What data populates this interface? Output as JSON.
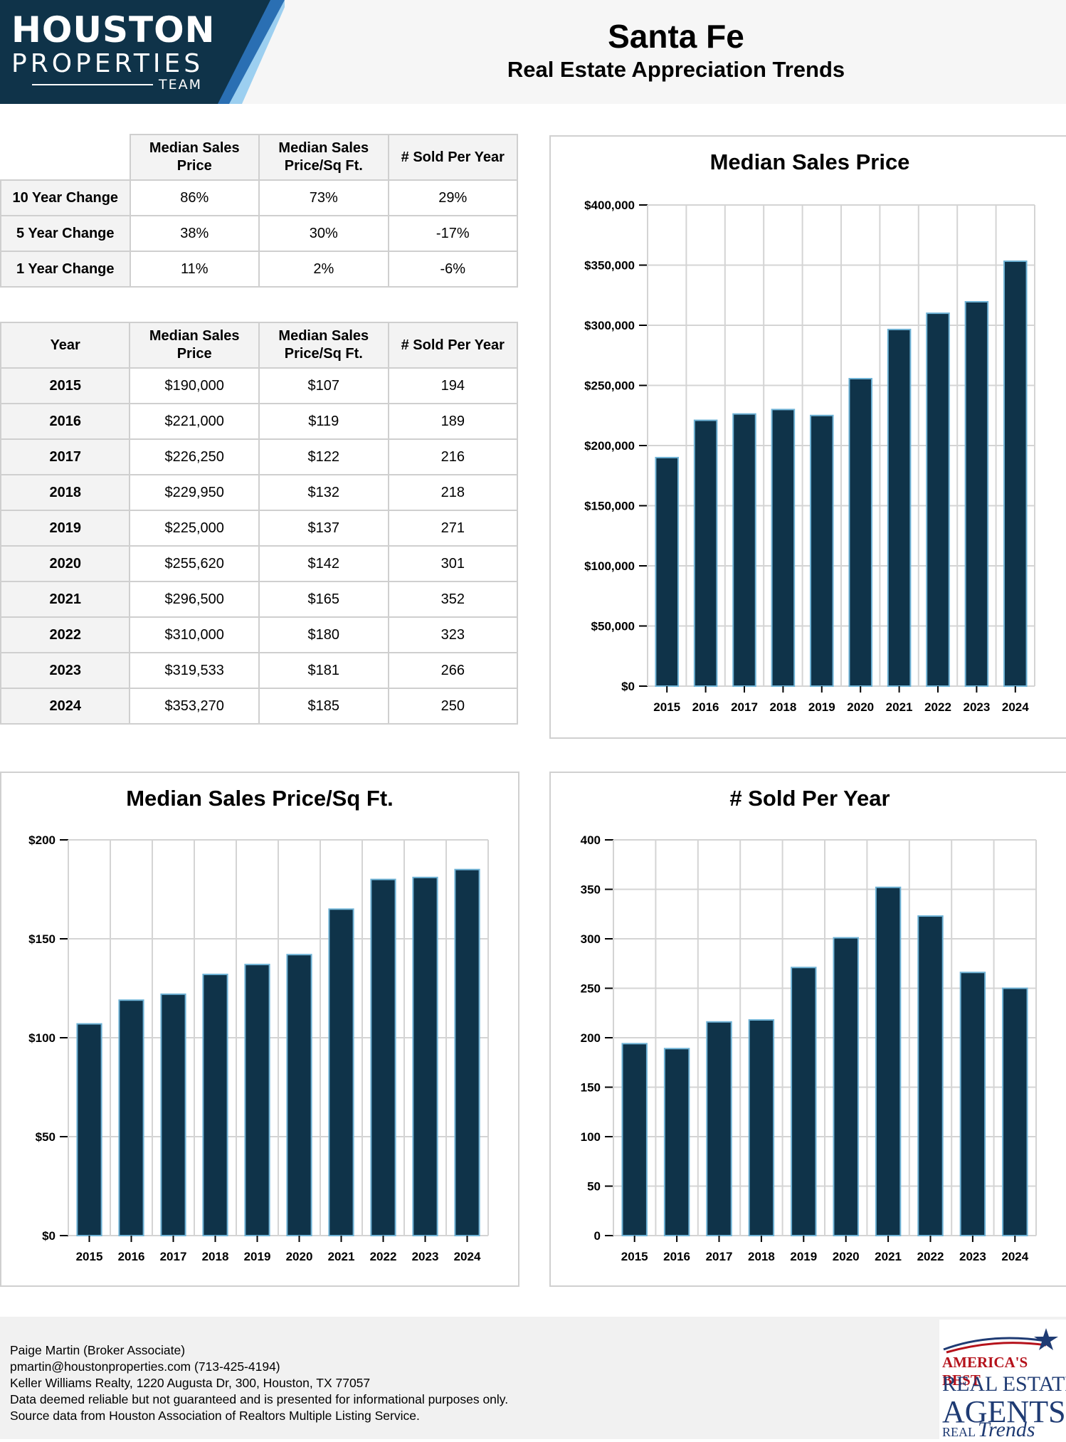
{
  "header": {
    "logo": {
      "line1": "HOUSTON",
      "line2": "PROPERTIES",
      "line3": "TEAM"
    },
    "title": "Santa Fe",
    "subtitle": "Real Estate Appreciation Trends"
  },
  "change_table": {
    "columns": [
      "Median Sales Price",
      "Median Sales Price/Sq Ft.",
      "# Sold Per Year"
    ],
    "rows": [
      {
        "label": "10 Year Change",
        "values": [
          "86%",
          "73%",
          "29%"
        ]
      },
      {
        "label": "5 Year Change",
        "values": [
          "38%",
          "30%",
          "-17%"
        ]
      },
      {
        "label": "1 Year Change",
        "values": [
          "11%",
          "2%",
          "-6%"
        ]
      }
    ]
  },
  "year_table": {
    "columns": [
      "Year",
      "Median Sales Price",
      "Median Sales Price/Sq Ft.",
      "# Sold Per Year"
    ],
    "rows": [
      [
        "2015",
        "$190,000",
        "$107",
        "194"
      ],
      [
        "2016",
        "$221,000",
        "$119",
        "189"
      ],
      [
        "2017",
        "$226,250",
        "$122",
        "216"
      ],
      [
        "2018",
        "$229,950",
        "$132",
        "218"
      ],
      [
        "2019",
        "$225,000",
        "$137",
        "271"
      ],
      [
        "2020",
        "$255,620",
        "$142",
        "301"
      ],
      [
        "2021",
        "$296,500",
        "$165",
        "352"
      ],
      [
        "2022",
        "$310,000",
        "$180",
        "323"
      ],
      [
        "2023",
        "$319,533",
        "$181",
        "266"
      ],
      [
        "2024",
        "$353,270",
        "$185",
        "250"
      ]
    ]
  },
  "chart_data": [
    {
      "id": "price",
      "type": "bar",
      "title": "Median Sales Price",
      "categories": [
        "2015",
        "2016",
        "2017",
        "2018",
        "2019",
        "2020",
        "2021",
        "2022",
        "2023",
        "2024"
      ],
      "values": [
        190000,
        221000,
        226250,
        229950,
        225000,
        255620,
        296500,
        310000,
        319533,
        353270
      ],
      "ylim": [
        0,
        400000
      ],
      "yticks": [
        0,
        50000,
        100000,
        150000,
        200000,
        250000,
        300000,
        350000,
        400000
      ],
      "ytick_labels": [
        "$0",
        "$50,000",
        "$100,000",
        "$150,000",
        "$200,000",
        "$250,000",
        "$300,000",
        "$350,000",
        "$400,000"
      ],
      "xlabel": "",
      "ylabel": "",
      "grid": true,
      "bar_color": "#0f3349",
      "edge_color": "#6fb3d6"
    },
    {
      "id": "sqft",
      "type": "bar",
      "title": "Median Sales Price/Sq Ft.",
      "categories": [
        "2015",
        "2016",
        "2017",
        "2018",
        "2019",
        "2020",
        "2021",
        "2022",
        "2023",
        "2024"
      ],
      "values": [
        107,
        119,
        122,
        132,
        137,
        142,
        165,
        180,
        181,
        185
      ],
      "ylim": [
        0,
        200
      ],
      "yticks": [
        0,
        50,
        100,
        150,
        200
      ],
      "ytick_labels": [
        "$0",
        "$50",
        "$100",
        "$150",
        "$200"
      ],
      "xlabel": "",
      "ylabel": "",
      "grid": true,
      "bar_color": "#0f3349",
      "edge_color": "#6fb3d6"
    },
    {
      "id": "sold",
      "type": "bar",
      "title": "# Sold Per Year",
      "categories": [
        "2015",
        "2016",
        "2017",
        "2018",
        "2019",
        "2020",
        "2021",
        "2022",
        "2023",
        "2024"
      ],
      "values": [
        194,
        189,
        216,
        218,
        271,
        301,
        352,
        323,
        266,
        250
      ],
      "ylim": [
        0,
        400
      ],
      "yticks": [
        0,
        50,
        100,
        150,
        200,
        250,
        300,
        350,
        400
      ],
      "ytick_labels": [
        "0",
        "50",
        "100",
        "150",
        "200",
        "250",
        "300",
        "350",
        "400"
      ],
      "xlabel": "",
      "ylabel": "",
      "grid": true,
      "bar_color": "#0f3349",
      "edge_color": "#6fb3d6"
    }
  ],
  "footer": {
    "lines": [
      "Paige Martin (Broker Associate)",
      "pmartin@houstonproperties.com (713-425-4194)",
      "Keller Williams Realty, 1220 Augusta Dr, 300, Houston, TX 77057",
      "Data deemed reliable but not guaranteed and is presented for informational purposes only.",
      "Source data from Houston Association of Realtors Multiple Listing Service."
    ],
    "badge": {
      "line1": "AMERICA'S BEST",
      "line2": "REAL ESTATE",
      "line3": "AGENTS",
      "line4": "REAL",
      "line5": "Trends"
    }
  },
  "colors": {
    "logo_bg": "#0f3349",
    "logo_stripe1": "#2a6fb3",
    "logo_stripe2": "#9ccff0"
  }
}
